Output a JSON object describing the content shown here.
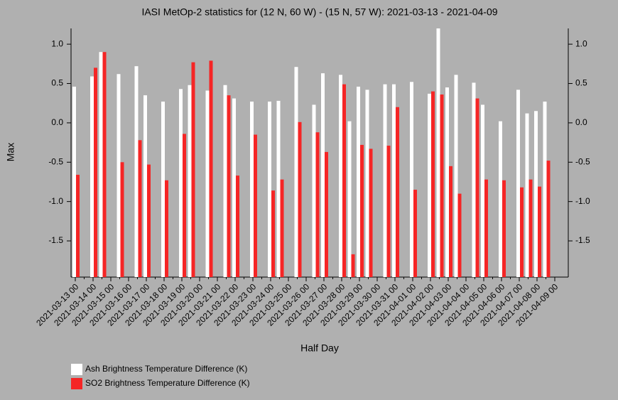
{
  "chart_data": {
    "type": "bar",
    "title": "IASI MetOp-2 statistics for (12 N, 60 W) - (15 N, 57 W): 2021-03-13 - 2021-04-09",
    "xlabel": "Half Day",
    "ylabel": "Max",
    "categories": [
      "2021-03-13 00",
      null,
      "2021-03-14 00",
      null,
      "2021-03-15 00",
      null,
      "2021-03-16 00",
      null,
      "2021-03-17 00",
      null,
      "2021-03-18 00",
      null,
      "2021-03-19 00",
      null,
      "2021-03-20 00",
      null,
      "2021-03-21 00",
      null,
      "2021-03-22 00",
      null,
      "2021-03-23 00",
      null,
      "2021-03-24 00",
      null,
      "2021-03-25 00",
      null,
      "2021-03-26 00",
      null,
      "2021-03-27 00",
      null,
      "2021-03-28 00",
      null,
      "2021-03-29 00",
      null,
      "2021-03-30 00",
      null,
      "2021-03-31 00",
      null,
      "2021-04-01 00",
      null,
      "2021-04-02 00",
      null,
      "2021-04-03 00",
      null,
      "2021-04-04 00",
      null,
      "2021-04-05 00",
      null,
      "2021-04-06 00",
      null,
      "2021-04-07 00",
      null,
      "2021-04-08 00",
      null,
      "2021-04-09 00"
    ],
    "series": [
      {
        "name": "Ash Brightness Temperature Difference (K)",
        "color": "#ffffff",
        "values": [
          0.46,
          null,
          0.59,
          0.9,
          null,
          0.62,
          null,
          0.72,
          0.35,
          null,
          0.27,
          null,
          0.43,
          0.48,
          null,
          0.41,
          null,
          0.48,
          0.31,
          null,
          0.27,
          null,
          0.27,
          0.28,
          null,
          0.71,
          null,
          0.23,
          0.63,
          null,
          0.61,
          0.02,
          0.46,
          0.42,
          null,
          0.49,
          0.49,
          null,
          0.52,
          null,
          0.37,
          1.2,
          0.45,
          0.61,
          null,
          0.51,
          0.23,
          null,
          0.02,
          null,
          0.42,
          0.12,
          0.15,
          0.27,
          null
        ]
      },
      {
        "name": "SO2 Brightness Temperature Difference (K)",
        "color": "#f52525",
        "values": [
          -0.66,
          null,
          0.7,
          0.9,
          null,
          -0.5,
          null,
          -0.22,
          -0.53,
          null,
          -0.73,
          null,
          -0.14,
          0.77,
          null,
          0.79,
          null,
          0.35,
          -0.67,
          null,
          -0.15,
          null,
          -0.86,
          -0.72,
          null,
          0.01,
          null,
          -0.12,
          -0.37,
          null,
          0.49,
          -1.67,
          -0.28,
          -0.33,
          null,
          -0.29,
          0.2,
          null,
          -0.85,
          null,
          0.4,
          0.36,
          -0.55,
          -0.9,
          null,
          0.31,
          -0.72,
          null,
          -0.73,
          null,
          -0.82,
          -0.72,
          -0.81,
          -0.48,
          null
        ]
      }
    ],
    "ylim": [
      -1.96,
      1.2
    ],
    "yticks": [
      {
        "value": 1,
        "label": "1.0"
      },
      0.5,
      {
        "value": 0,
        "label": "0.0"
      },
      -0.5,
      {
        "value": -1,
        "label": "-1.0"
      },
      -1.5
    ]
  }
}
